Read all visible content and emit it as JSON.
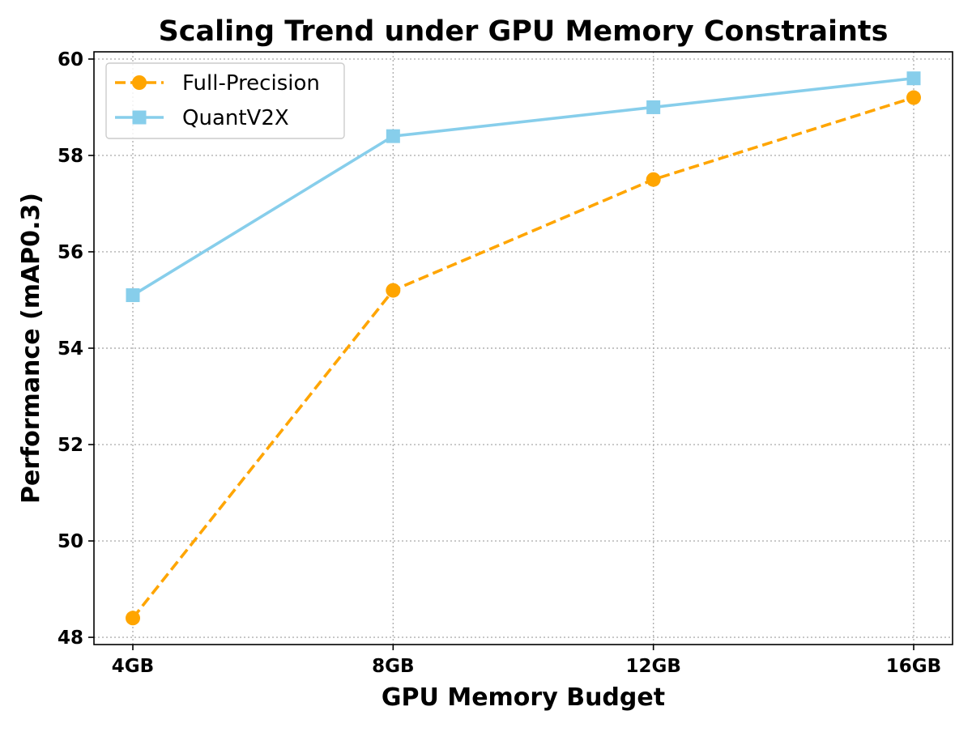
{
  "chart_data": {
    "type": "line",
    "title": "Scaling Trend under GPU Memory Constraints",
    "xlabel": "GPU Memory Budget",
    "ylabel": "Performance (mAP0.3)",
    "categories": [
      "4GB",
      "8GB",
      "12GB",
      "16GB"
    ],
    "ylim": [
      47.85,
      60.15
    ],
    "yticks": [
      48,
      50,
      52,
      54,
      56,
      58,
      60
    ],
    "grid": true,
    "legend_position": "top-left",
    "series": [
      {
        "name": "Full-Precision",
        "values": [
          48.4,
          55.2,
          57.5,
          59.2
        ],
        "color": "#ffa500",
        "line_style": "dashed",
        "marker": "circle"
      },
      {
        "name": "QuantV2X",
        "values": [
          55.1,
          58.4,
          59.0,
          59.6
        ],
        "color": "#87ceeb",
        "line_style": "solid",
        "marker": "square"
      }
    ]
  }
}
